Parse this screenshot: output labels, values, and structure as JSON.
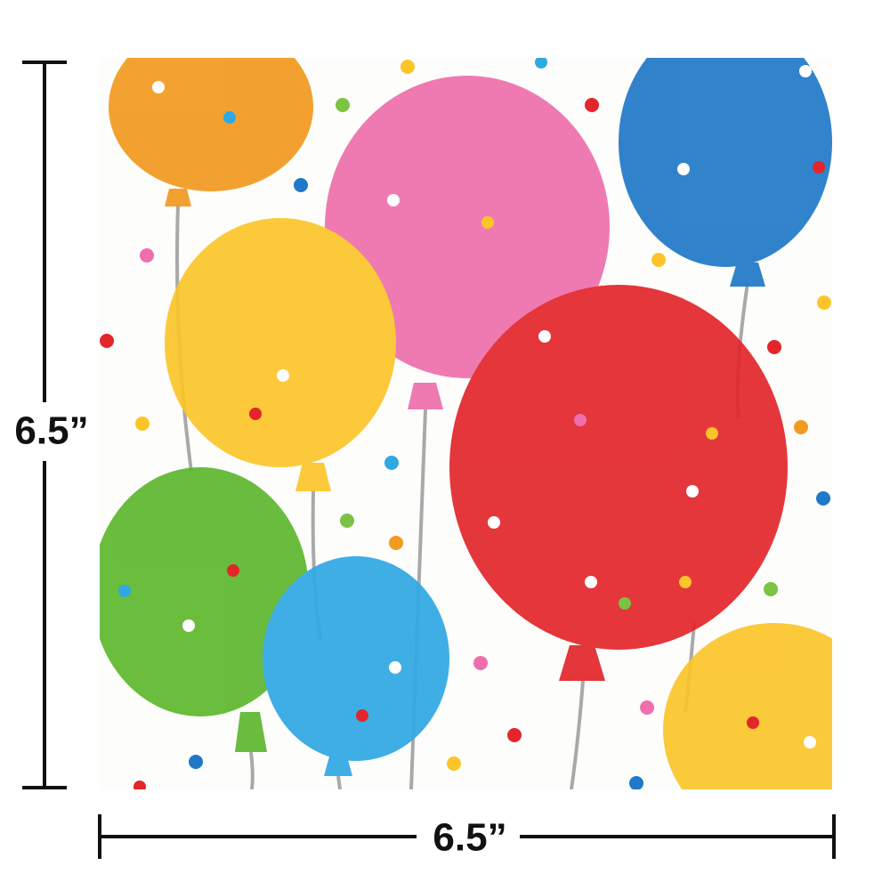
{
  "dimensions": {
    "height": "6.5”",
    "width": "6.5”"
  }
}
